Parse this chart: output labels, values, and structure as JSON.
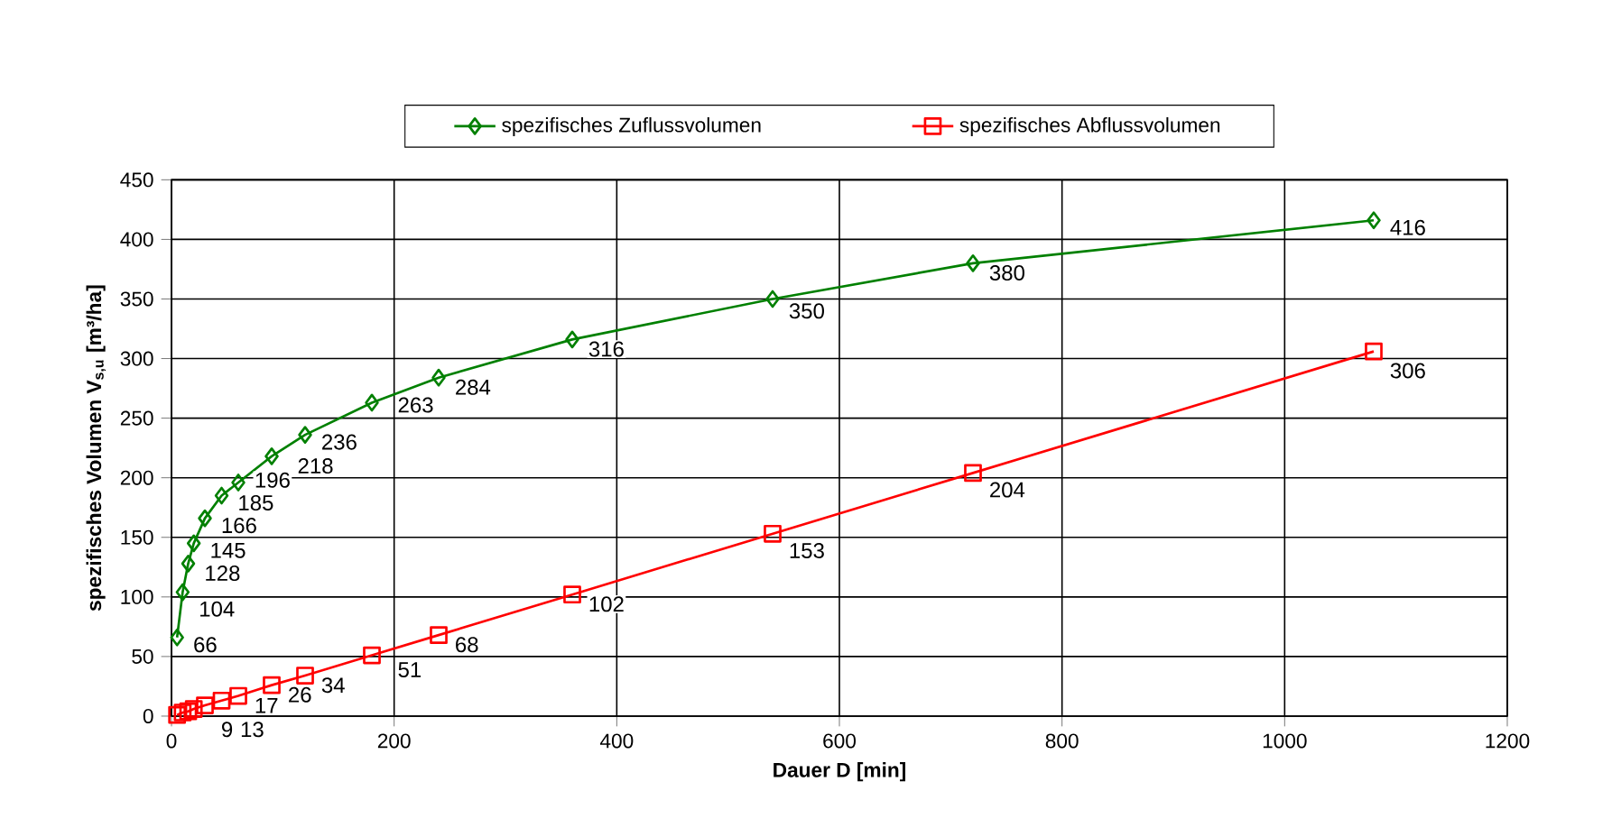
{
  "chart_data": {
    "type": "line",
    "xlabel": "Dauer D [min]",
    "ylabel": "spezifisches Volumen V$_{s,u}$ [m³/ha]",
    "x": [
      5,
      10,
      15,
      20,
      30,
      45,
      60,
      90,
      120,
      180,
      240,
      360,
      540,
      720,
      1080
    ],
    "series": [
      {
        "name": "spezifisches Zuflussvolumen",
        "color": "#008000",
        "marker": "diamond",
        "values": [
          66,
          104,
          128,
          145,
          166,
          185,
          196,
          218,
          236,
          263,
          284,
          316,
          350,
          380,
          416
        ],
        "value_labels": [
          "66",
          "104",
          "128",
          "145",
          "166",
          "185",
          "196",
          "218",
          "236",
          "263",
          "284",
          "316",
          "350",
          "380",
          "416"
        ]
      },
      {
        "name": "spezifisches Abflussvolumen",
        "color": "#ff0000",
        "marker": "square",
        "values": [
          1,
          3,
          4,
          6,
          9,
          13,
          17,
          26,
          34,
          51,
          68,
          102,
          153,
          204,
          306
        ],
        "value_labels": [
          null,
          null,
          null,
          null,
          "9",
          "13",
          "17",
          "26",
          "34",
          "51",
          "68",
          "102",
          "153",
          "204",
          "306"
        ]
      }
    ],
    "xlim": [
      0,
      1200
    ],
    "xticks": [
      0,
      200,
      400,
      600,
      800,
      1000,
      1200
    ],
    "ylim": [
      0,
      450
    ],
    "yticks": [
      0,
      50,
      100,
      150,
      200,
      250,
      300,
      350,
      400,
      450
    ],
    "grid": true,
    "legend": "top",
    "line_style": "solid"
  }
}
